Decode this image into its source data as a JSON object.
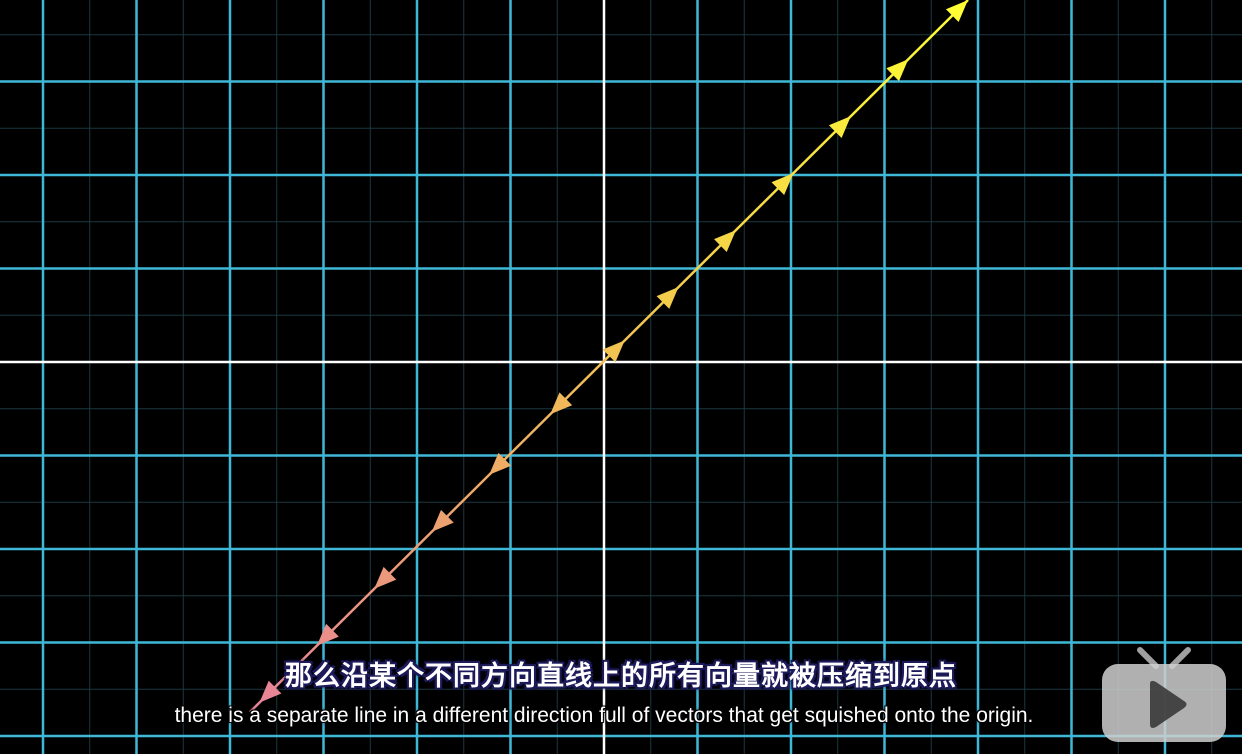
{
  "subtitles": {
    "chinese": "那么沿某个不同方向直线上的所有向量就被压缩到原点",
    "english": "there is a separate line in a different direction full of vectors that get squished onto the origin."
  },
  "player": {
    "logo_icon": "tv-play-icon"
  },
  "colors": {
    "background": "#000000",
    "grid_major": "#3fb8d8",
    "grid_minor": "#1f3d48",
    "axis": "#ffffff",
    "vector_start": "#ffff33",
    "vector_end": "#e8839a"
  }
}
